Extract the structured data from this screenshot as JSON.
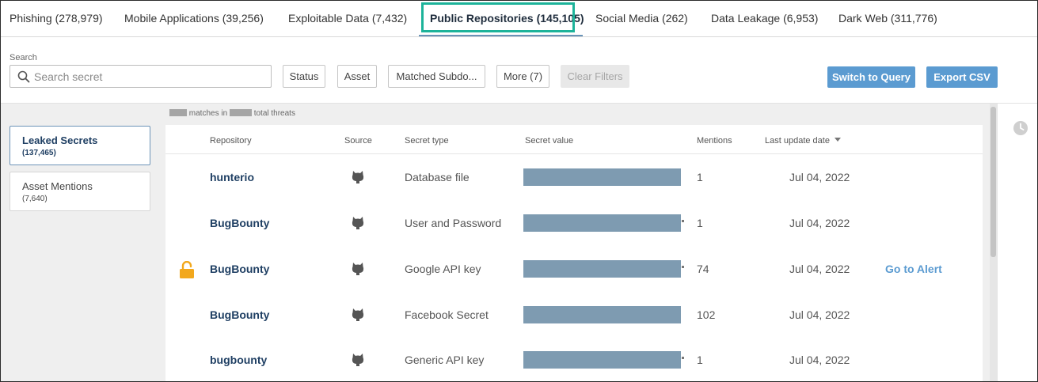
{
  "tabs": [
    {
      "label": "Phishing (278,979)"
    },
    {
      "label": "Mobile Applications (39,256)"
    },
    {
      "label": "Exploitable Data (7,432)"
    },
    {
      "label": "Public Repositories (145,105)"
    },
    {
      "label": "Social Media (262)"
    },
    {
      "label": "Data Leakage (6,953)"
    },
    {
      "label": "Dark Web (311,776)"
    }
  ],
  "search": {
    "label": "Search",
    "placeholder": "Search secret",
    "value": ""
  },
  "filters": {
    "status": "Status",
    "asset": "Asset",
    "matched_subdomain": "Matched Subdo...",
    "more": "More (7)",
    "clear": "Clear Filters"
  },
  "actions": {
    "switch_query": "Switch to Query",
    "export_csv": "Export CSV"
  },
  "summary": {
    "matches_text": "matches in",
    "total_text": "total threats"
  },
  "sidebar": [
    {
      "label": "Leaked Secrets",
      "count": "(137,465)"
    },
    {
      "label": "Asset Mentions",
      "count": "(7,640)"
    }
  ],
  "table": {
    "headers": {
      "repository": "Repository",
      "source": "Source",
      "secret_type": "Secret type",
      "secret_value": "Secret value",
      "mentions": "Mentions",
      "last_update": "Last update date"
    },
    "rows": [
      {
        "repository": "hunterio",
        "source_icon": "github-icon",
        "secret_type": "Database file",
        "mentions": "1",
        "date": "Jul 04, 2022",
        "action": ""
      },
      {
        "repository": "BugBounty",
        "source_icon": "github-icon",
        "secret_type": "User and Password",
        "mentions": "1",
        "date": "Jul 04, 2022",
        "action": ""
      },
      {
        "repository": "BugBounty",
        "source_icon": "github-icon",
        "secret_type": "Google API key",
        "mentions": "74",
        "date": "Jul 04, 2022",
        "action": "Go to Alert"
      },
      {
        "repository": "BugBounty",
        "source_icon": "github-icon",
        "secret_type": "Facebook Secret",
        "mentions": "102",
        "date": "Jul 04, 2022",
        "action": ""
      },
      {
        "repository": "bugbounty",
        "source_icon": "github-icon",
        "secret_type": "Generic API key",
        "mentions": "1",
        "date": "Jul 04, 2022",
        "action": ""
      }
    ]
  },
  "colors": {
    "accent": "#5b9bd1",
    "tab_highlight": "#1db39a",
    "lock": "#f2a81d",
    "redaction": "#7e9bb1"
  }
}
